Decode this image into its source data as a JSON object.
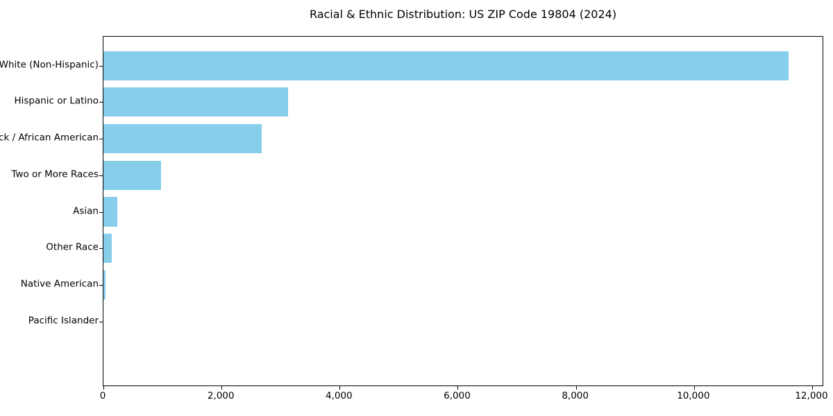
{
  "figure": {
    "background": "#FFFFFF",
    "axis_color": "#000000",
    "text_color": "#000000"
  },
  "chart_data": {
    "type": "bar",
    "orientation": "horizontal",
    "title": "Racial & Ethnic Distribution: US ZIP Code 19804 (2024)",
    "categories": [
      "White (Non-Hispanic)",
      "Hispanic or Latino",
      "Black / African American",
      "Two or More Races",
      "Asian",
      "Other Race",
      "Native American",
      "Pacific Islander"
    ],
    "values": [
      11600,
      3130,
      2680,
      975,
      235,
      140,
      40,
      0
    ],
    "bar_color": "#87CEEB",
    "xlabel": "",
    "ylabel": "",
    "xlim": [
      0,
      12200
    ],
    "xticks": [
      0,
      2000,
      4000,
      6000,
      8000,
      10000,
      12000
    ],
    "xtick_labels": [
      "0",
      "2,000",
      "4,000",
      "6,000",
      "8,000",
      "10,000",
      "12,000"
    ],
    "grid": false,
    "legend": "none",
    "bar_height_fraction": 0.8
  }
}
